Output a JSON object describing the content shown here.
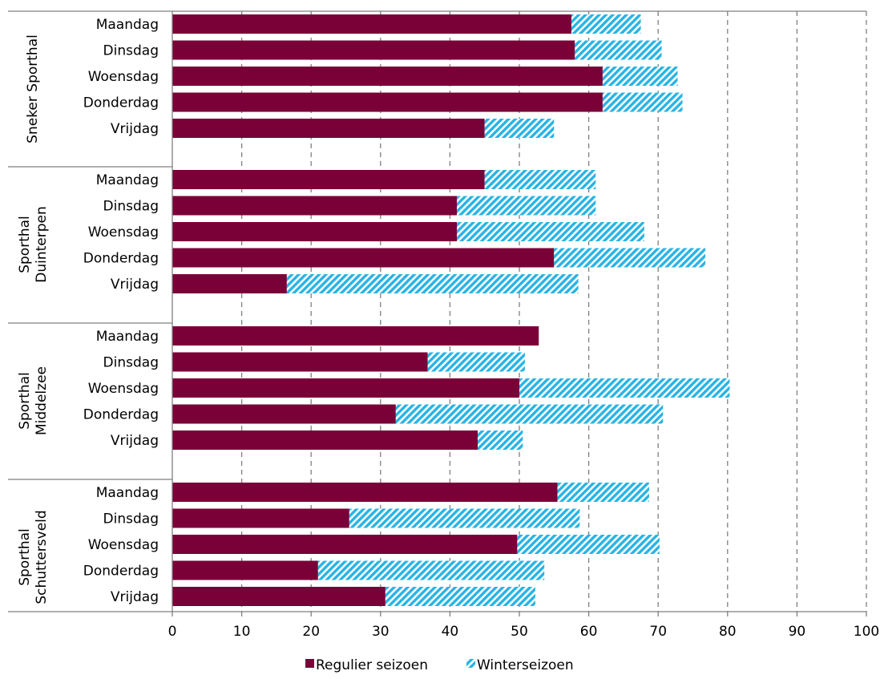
{
  "chart_data": {
    "type": "bar",
    "orientation": "horizontal",
    "stacked": true,
    "xlim": [
      0,
      100
    ],
    "x_ticks": [
      "0",
      "10",
      "20",
      "30",
      "40",
      "50",
      "60",
      "70",
      "80",
      "90",
      "100"
    ],
    "grid": "vertical dashed",
    "legend_position": "bottom",
    "colors": {
      "regulier": "#7a0038",
      "winter": "#27b4e4"
    },
    "groups": [
      {
        "name": "Sneker Sporthal",
        "days": [
          "Maandag",
          "Dinsdag",
          "Woensdag",
          "Donderdag",
          "Vrijdag"
        ],
        "regulier": [
          57.5,
          58,
          62,
          62,
          45
        ],
        "winter": [
          10,
          12.5,
          10.8,
          11.5,
          10
        ]
      },
      {
        "name": "Sporthal Duinterpen",
        "days": [
          "Maandag",
          "Dinsdag",
          "Woensdag",
          "Donderdag",
          "Vrijdag"
        ],
        "regulier": [
          45,
          41,
          41,
          55,
          16.5
        ],
        "winter": [
          16,
          20,
          27,
          21.8,
          42
        ]
      },
      {
        "name": "Sporthal Middelzee",
        "days": [
          "Maandag",
          "Dinsdag",
          "Woensdag",
          "Donderdag",
          "Vrijdag"
        ],
        "regulier": [
          52.8,
          36.8,
          50,
          32.2,
          44
        ],
        "winter": [
          0,
          14,
          30.3,
          38.5,
          6.5
        ]
      },
      {
        "name": "Sporthal Schuttersveld",
        "days": [
          "Maandag",
          "Dinsdag",
          "Woensdag",
          "Donderdag",
          "Vrijdag"
        ],
        "regulier": [
          55.5,
          25.5,
          49.7,
          21,
          30.7
        ],
        "winter": [
          13.2,
          33.2,
          20.5,
          32.6,
          21.6
        ]
      }
    ],
    "series": [
      {
        "name": "Regulier seizoen"
      },
      {
        "name": "Winterseizoen"
      }
    ]
  }
}
